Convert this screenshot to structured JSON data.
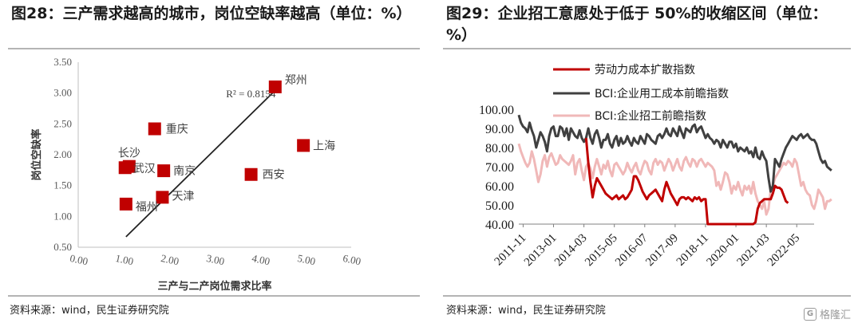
{
  "left": {
    "title": "图28：三产需求越高的城市，岗位空缺率越高（单位：%）",
    "source": "资料来源：wind，民生证券研究院",
    "colors": {
      "marker": "#c00000",
      "trend": "#222222"
    },
    "chart_data": {
      "type": "scatter",
      "xlabel": "三产与二产岗位需求比率",
      "ylabel": "岗位空缺率",
      "xlim": [
        0,
        6
      ],
      "ylim": [
        0.5,
        3.5
      ],
      "xticks": [
        "0.00",
        "1.00",
        "2.00",
        "3.00",
        "4.00",
        "5.00",
        "6.00"
      ],
      "yticks": [
        "0.50",
        "1.00",
        "1.50",
        "2.00",
        "2.50",
        "3.00",
        "3.50"
      ],
      "points": [
        {
          "label": "郑州",
          "x": 4.33,
          "y": 3.1
        },
        {
          "label": "上海",
          "x": 4.95,
          "y": 2.15
        },
        {
          "label": "重庆",
          "x": 1.68,
          "y": 2.42
        },
        {
          "label": "长沙",
          "x": 1.12,
          "y": 1.81
        },
        {
          "label": "武汉",
          "x": 1.03,
          "y": 1.79
        },
        {
          "label": "南京",
          "x": 1.88,
          "y": 1.74
        },
        {
          "label": "西安",
          "x": 3.8,
          "y": 1.68
        },
        {
          "label": "天津",
          "x": 1.85,
          "y": 1.31
        },
        {
          "label": "福州",
          "x": 1.05,
          "y": 1.2
        }
      ],
      "trendline": {
        "x": [
          1.05,
          4.45
        ],
        "y": [
          0.67,
          3.13
        ]
      },
      "annotation": "R² = 0.8154"
    }
  },
  "right": {
    "title": "图29：企业招工意愿处于低于 50%的收缩区间（单位：%）",
    "source": "资料来源：wind，民生证券研究院",
    "watermark": "格隆汇",
    "colors": {
      "labor": "#c00000",
      "bci_cost": "#404040",
      "bci_hire": "#f0b8b8"
    },
    "chart_data": {
      "type": "line",
      "ylim": [
        40,
        100
      ],
      "yticks": [
        "40.00",
        "50.00",
        "60.00",
        "70.00",
        "80.00",
        "90.00",
        "100.00"
      ],
      "xticks": [
        "2011-11",
        "2013-01",
        "2014-03",
        "2015-05",
        "2016-07",
        "2017-09",
        "2018-11",
        "2020-01",
        "2021-03",
        "2022-05"
      ],
      "x_range": [
        "2011-09",
        "2023-01"
      ],
      "series": [
        {
          "name": "劳动力成本扩散指数",
          "start": "2014-04",
          "values": [
            85,
            72,
            62,
            54,
            60,
            64,
            62,
            60,
            58,
            56,
            55,
            54,
            53,
            54,
            55,
            53,
            54,
            55,
            53,
            54,
            56,
            58,
            65,
            65,
            63,
            60,
            57,
            55,
            53,
            55,
            56,
            57,
            58,
            56,
            54,
            52,
            58,
            62,
            59,
            56,
            54,
            52,
            50,
            53,
            54,
            54,
            53,
            54,
            53,
            52,
            54,
            53,
            54,
            52,
            53,
            53,
            40,
            40,
            40,
            40,
            40,
            40,
            40,
            40,
            40,
            40,
            40,
            40,
            40,
            40,
            40,
            40,
            40,
            40,
            40,
            40,
            40,
            40,
            41,
            48,
            51,
            52,
            53,
            53,
            53,
            53,
            56,
            60,
            59,
            59,
            58,
            55,
            52,
            51
          ]
        },
        {
          "name": "BCI:企业用工成本前瞻指数",
          "start": "2011-09",
          "values": [
            97,
            93,
            91,
            90,
            88,
            93,
            89,
            86,
            80,
            84,
            88,
            86,
            83,
            78,
            86,
            90,
            91,
            86,
            86,
            91,
            90,
            86,
            90,
            84,
            90,
            88,
            86,
            85,
            89,
            85,
            83,
            85,
            90,
            85,
            82,
            87,
            89,
            85,
            80,
            84,
            84,
            87,
            82,
            80,
            84,
            86,
            81,
            85,
            82,
            83,
            86,
            83,
            81,
            85,
            83,
            82,
            86,
            84,
            82,
            87,
            86,
            84,
            83,
            82,
            86,
            87,
            85,
            87,
            90,
            87,
            86,
            90,
            88,
            86,
            91,
            88,
            85,
            90,
            89,
            88,
            91,
            92,
            88,
            90,
            91,
            88,
            85,
            87,
            85,
            84,
            82,
            84,
            83,
            80,
            84,
            82,
            80,
            83,
            83,
            80,
            82,
            78,
            80,
            79,
            78,
            80,
            77,
            78,
            75,
            80,
            75,
            74,
            78,
            75,
            73,
            64,
            57,
            60,
            74,
            72,
            70,
            74,
            77,
            80,
            82,
            84,
            86,
            85,
            84,
            86,
            87,
            85,
            86,
            87,
            85,
            84,
            84,
            82,
            78,
            74,
            72,
            73,
            70,
            69,
            68
          ]
        },
        {
          "name": "BCI:企业招工前瞻指数",
          "start": "2011-09",
          "values": [
            82,
            78,
            75,
            72,
            70,
            72,
            78,
            74,
            68,
            62,
            66,
            73,
            76,
            70,
            75,
            77,
            74,
            71,
            72,
            76,
            74,
            73,
            72,
            71,
            73,
            76,
            66,
            72,
            74,
            68,
            63,
            70,
            72,
            69,
            64,
            70,
            74,
            70,
            66,
            71,
            69,
            73,
            68,
            65,
            71,
            72,
            70,
            68,
            66,
            68,
            72,
            69,
            67,
            70,
            72,
            68,
            66,
            70,
            73,
            72,
            68,
            66,
            72,
            74,
            71,
            73,
            72,
            68,
            71,
            74,
            72,
            68,
            71,
            74,
            70,
            68,
            73,
            75,
            72,
            70,
            74,
            73,
            70,
            73,
            74,
            72,
            70,
            72,
            71,
            70,
            68,
            60,
            62,
            58,
            62,
            67,
            66,
            62,
            56,
            60,
            58,
            62,
            58,
            55,
            60,
            58,
            60,
            56,
            62,
            56,
            52,
            50,
            48,
            52,
            45,
            48,
            58,
            60,
            64,
            66,
            68,
            70,
            72,
            71,
            73,
            72,
            70,
            74,
            72,
            66,
            60,
            62,
            58,
            56,
            55,
            50,
            48,
            52,
            58,
            56,
            54,
            48,
            52,
            52,
            53
          ]
        }
      ]
    }
  }
}
